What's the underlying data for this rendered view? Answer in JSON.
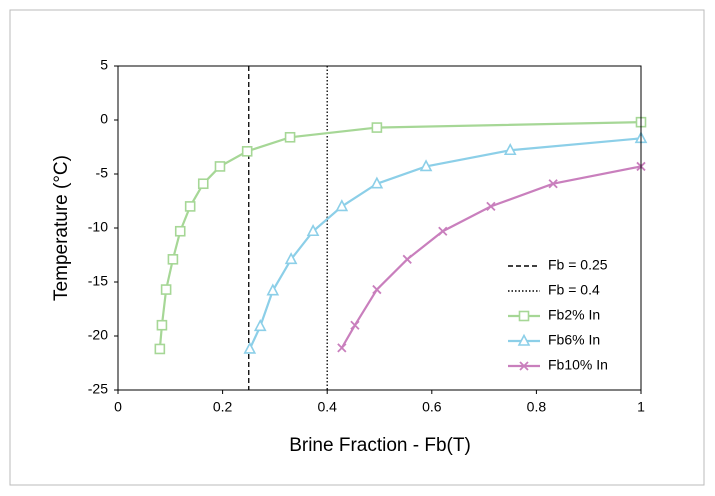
{
  "chart_data": {
    "type": "line",
    "xlabel": "Brine Fraction - Fb(T)",
    "ylabel": "Temperature (°C)",
    "xlim": [
      0,
      1
    ],
    "xticks": [
      0,
      0.2,
      0.4,
      0.6,
      0.8,
      1
    ],
    "ylim": [
      -25,
      5
    ],
    "yticks": [
      -25,
      -20,
      -15,
      -10,
      -5,
      0,
      5
    ],
    "legend": "lower right",
    "vlines": [
      {
        "name": "Fb = 0.25",
        "x": 0.25,
        "style": "dashed",
        "color": "#000000"
      },
      {
        "name": "Fb = 0.4",
        "x": 0.4,
        "style": "dotted",
        "color": "#000000"
      }
    ],
    "series": [
      {
        "name": "Fb2% In",
        "color": "#a6d796",
        "marker": "square",
        "x": [
          0.08,
          0.084,
          0.092,
          0.105,
          0.119,
          0.138,
          0.163,
          0.195,
          0.247,
          0.329,
          0.495,
          1
        ],
        "values": [
          -21.2,
          -19,
          -15.7,
          -12.9,
          -10.3,
          -8,
          -5.9,
          -4.3,
          -2.9,
          -1.6,
          -0.7,
          -0.2
        ]
      },
      {
        "name": "Fb6% In",
        "color": "#8ccfe8",
        "marker": "triangle",
        "x": [
          0.252,
          0.272,
          0.296,
          0.331,
          0.373,
          0.428,
          0.495,
          0.589,
          0.75,
          1
        ],
        "values": [
          -21.2,
          -19.1,
          -15.8,
          -12.9,
          -10.3,
          -8,
          -5.9,
          -4.3,
          -2.8,
          -1.7
        ]
      },
      {
        "name": "Fb10% In",
        "color": "#c97fbd",
        "marker": "x",
        "x": [
          0.428,
          0.453,
          0.495,
          0.553,
          0.621,
          0.713,
          0.832,
          1
        ],
        "values": [
          -21.1,
          -19,
          -15.7,
          -12.9,
          -10.3,
          -8,
          -5.9,
          -4.3
        ]
      }
    ]
  }
}
